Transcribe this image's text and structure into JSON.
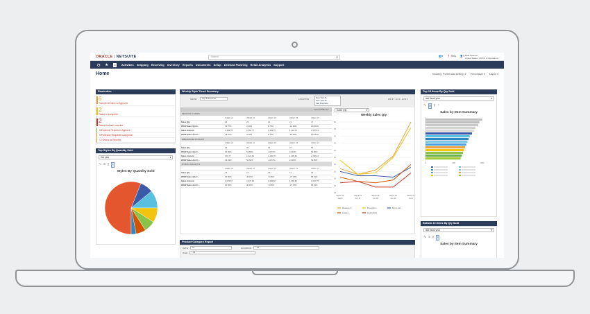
{
  "header": {
    "logo_oracle": "ORACLE",
    "logo_sep": " | ",
    "logo_netsuite": "NETSUITE",
    "search_placeholder": "Search",
    "help": "Help",
    "user_name": "Brad Spencer",
    "user_role": "United States: US Dir. of Operations"
  },
  "nav": {
    "items": [
      "Activities",
      "Shipping",
      "Receiving",
      "Inventory",
      "Reports",
      "Documents",
      "Setup",
      "Demand Planning",
      "Retail Analytics",
      "Support"
    ]
  },
  "page": {
    "title": "Home",
    "showing": "Showing: Portlet data settings ▾",
    "personalize": "Personalize ▾",
    "layout": "Layout ▾"
  },
  "reminders": {
    "title": "Reminders",
    "items": [
      {
        "num": "6",
        "text": "Transfer Orders to Approve",
        "color": "#e8a33d"
      },
      {
        "num": "2",
        "text": "Tasks to complete",
        "color": "#f1c40f"
      },
      {
        "num": "2",
        "text": "Tasks that are overdue",
        "color": "#c0392b"
      }
    ],
    "links": [
      "8 Expense Reports to Approve",
      "9 Purchase Requests to Approve",
      "12 Orders to Receive"
    ]
  },
  "top_styles": {
    "title": "Top Styles By Quantity Sold",
    "period": "this year",
    "chart_title": "Styles By Quantity Sold"
  },
  "weekly": {
    "title": "Weekly Style Trend Summary",
    "show_label": "SHOW",
    "show_value": "Top 6 Revenue",
    "location_label": "LOCATION",
    "locations": [
      "New York #1",
      "New York #2",
      "San Francisco"
    ],
    "collapse": "COLLAPSE ALL",
    "period": "WK 27, Jul 3 - Jul 9 ▾",
    "groups": [
      {
        "name": "MEADOW CAPRIS",
        "weeks": [
          "WEEK 23",
          "WEEK 24",
          "WEEK 25",
          "WEEK 26",
          "WEEK 27"
        ],
        "rows": [
          {
            "label": "Sales Qty",
            "vals": [
              "23",
              "23",
              "21",
              "21",
              "47"
            ]
          },
          {
            "label": "WOW Sales Qty C...",
            "vals": [
              "79.57%",
              "0.00%",
              "8.70%",
              "-10.00%",
              "123.81%"
            ]
          },
          {
            "label": "Sales Amount",
            "vals": [
              "1,349.75",
              "1,351.77",
              "1,349.75",
              "1,122.76",
              "2,557.53"
            ]
          },
          {
            "label": "WOW Sales Amt C...",
            "vals": [
              "79.57%",
              "0.00%",
              "8.70%",
              "-10.00%",
              "123.81%"
            ]
          }
        ]
      },
      {
        "name": "DREAMLINE 3/4 SHIRT",
        "weeks": [
          "WEEK 23",
          "WEEK 24",
          "WEEK 25",
          "WEEK 26",
          "WEEK 27"
        ],
        "rows": [
          {
            "label": "Sales Qty",
            "vals": [
              "23",
              "35",
              "30",
              "37",
              "57"
            ]
          },
          {
            "label": "WOW Sales Qty C...",
            "vals": [
              "64.29%",
              "52.52%",
              "-16.67%",
              "23.33%",
              "54.05%"
            ]
          },
          {
            "label": "Sales Amount",
            "vals": [
              "970.77",
              "1,221.64",
              "1,130.78",
              "1,395.62",
              "2,150.42"
            ]
          },
          {
            "label": "WOW Sales Amt C...",
            "vals": [
              "64.29%",
              "52.52%",
              "-16.67%",
              "23.33%",
              "54.05%"
            ]
          }
        ]
      },
      {
        "name": "BYRON JACKET M",
        "weeks": [
          "WEEK 23",
          "WEEK 24",
          "WEEK 25",
          "WEEK 26",
          "WEEK 27"
        ],
        "rows": [
          {
            "label": "Sales Qty",
            "vals": [
              "13",
              "13",
              "13",
              "11",
              "23"
            ]
          },
          {
            "label": "WOW Sales Qty C...",
            "vals": [
              "62.50%",
              "40.15%",
              "-5.26%",
              "-27.78%",
              "98.23%"
            ]
          },
          {
            "label": "Sales Amount",
            "vals": [
              "1,079.87",
              "1,376.61",
              "1,405.62",
              "1,055.81",
              "1,621.75"
            ]
          },
          {
            "label": "WOW Sales Amt C...",
            "vals": [
              "62.50%",
              "40.15%",
              "-5.26%",
              "-27.78%",
              "98.23%"
            ]
          }
        ]
      }
    ],
    "metric": "Sales Qty",
    "chart_title": "Weekly Sales Qty",
    "legend": [
      "Meadow C...",
      "Dreamline...",
      "Byron Jac...",
      "Andora...",
      "Swing Skirt"
    ]
  },
  "product_report": {
    "title": "Product Category Report",
    "date_label": "DATE",
    "date_value": "All",
    "location_label": "LOCATION",
    "location_value": "- All -",
    "item_label": "ITEM",
    "item_value": "- All -"
  },
  "top15": {
    "title": "Top 15 Items By Qty Sold",
    "period": "last fiscal year",
    "chart_title": "Sales by Item Summary"
  },
  "bottom10": {
    "title": "Bottom 10 Items By Qty Sold",
    "period": "last fiscal year",
    "chart_title": "Sales by Item Summary"
  },
  "chart_data": [
    {
      "type": "pie",
      "labels": [
        "",
        "",
        "",
        "",
        "",
        "",
        ""
      ],
      "values": [
        56,
        8,
        11,
        9,
        7,
        6,
        3
      ],
      "colors": [
        "#e4572e",
        "#3b5ba9",
        "#5bc0de",
        "#f1c40f",
        "#8bc34a",
        "#d35400",
        "#2e86c1"
      ]
    },
    {
      "type": "line",
      "title": "Weekly Sales Qty",
      "categories": [
        "Week 23\nJun 4",
        "Week 24\nJun 11",
        "Week 25\nJun 18",
        "Week 26\nJun 25",
        "Week 27\nJul 2"
      ],
      "ylim": [
        10,
        60
      ],
      "yticks": [
        10,
        15,
        20,
        25,
        30,
        35,
        40,
        45,
        50,
        55,
        60
      ],
      "series": [
        {
          "name": "Meadow C...",
          "values": [
            27,
            23,
            26,
            36,
            60
          ],
          "color": "#e8a33d"
        },
        {
          "name": "Dreamline...",
          "values": [
            33,
            23,
            24,
            35,
            56
          ],
          "color": "#f1c40f"
        },
        {
          "name": "Byron Jac...",
          "values": [
            25,
            22,
            22,
            21,
            28
          ],
          "color": "#3b5ba9"
        },
        {
          "name": "Andora...",
          "values": [
            21,
            18,
            17,
            19,
            30
          ],
          "color": "#d35400"
        },
        {
          "name": "Swing Skirt",
          "values": [
            17,
            18,
            14,
            14,
            24
          ],
          "color": "#c0392b"
        }
      ]
    },
    {
      "type": "bar",
      "orientation": "horizontal",
      "title": "Sales by Item Summary",
      "categories": [
        "",
        "",
        "",
        "",
        "",
        "",
        "",
        "",
        "",
        "",
        "",
        "",
        "",
        "",
        ""
      ],
      "values": [
        1000,
        950,
        930,
        880,
        860,
        820,
        780,
        760,
        740,
        720,
        700,
        680,
        660,
        640,
        620
      ],
      "colors": [
        "#bdbdbd",
        "#bdbdbd",
        "#c8c8c8",
        "#d0d0d0",
        "#d9d9d9",
        "#3b5ba9",
        "#5bc0de",
        "#2e86c1",
        "#7ec8e3",
        "#4aa3df",
        "#e8a33d",
        "#f1c40f",
        "#8bc34a",
        "#6ab04c",
        "#a3cb38"
      ],
      "xticks": [
        "0",
        "500",
        "1000"
      ]
    }
  ]
}
